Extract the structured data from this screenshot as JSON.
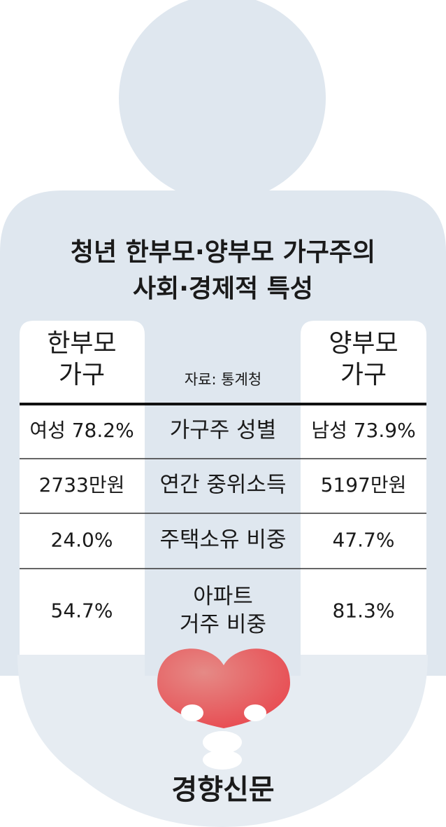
{
  "title": [
    "청년 한부모·양부모 가구주의",
    "사회·경제적 특성"
  ],
  "left_header": [
    "한부모",
    "가구"
  ],
  "right_header": [
    "양부모",
    "가구"
  ],
  "source": "자료: 통계청",
  "rows": [
    {
      "left": "여성 78.2%",
      "label": [
        "가구주 성별"
      ],
      "right": "남성 73.9%"
    },
    {
      "left": "2733만원",
      "label": [
        "연간 중위소득"
      ],
      "right": "5197만원"
    },
    {
      "left": "24.0%",
      "label": [
        "주택소유 비중"
      ],
      "right": "47.7%"
    },
    {
      "left": "54.7%",
      "label": [
        "아파트",
        "거주 비중"
      ],
      "right": "81.3%"
    }
  ],
  "watermark": "경향신문"
}
